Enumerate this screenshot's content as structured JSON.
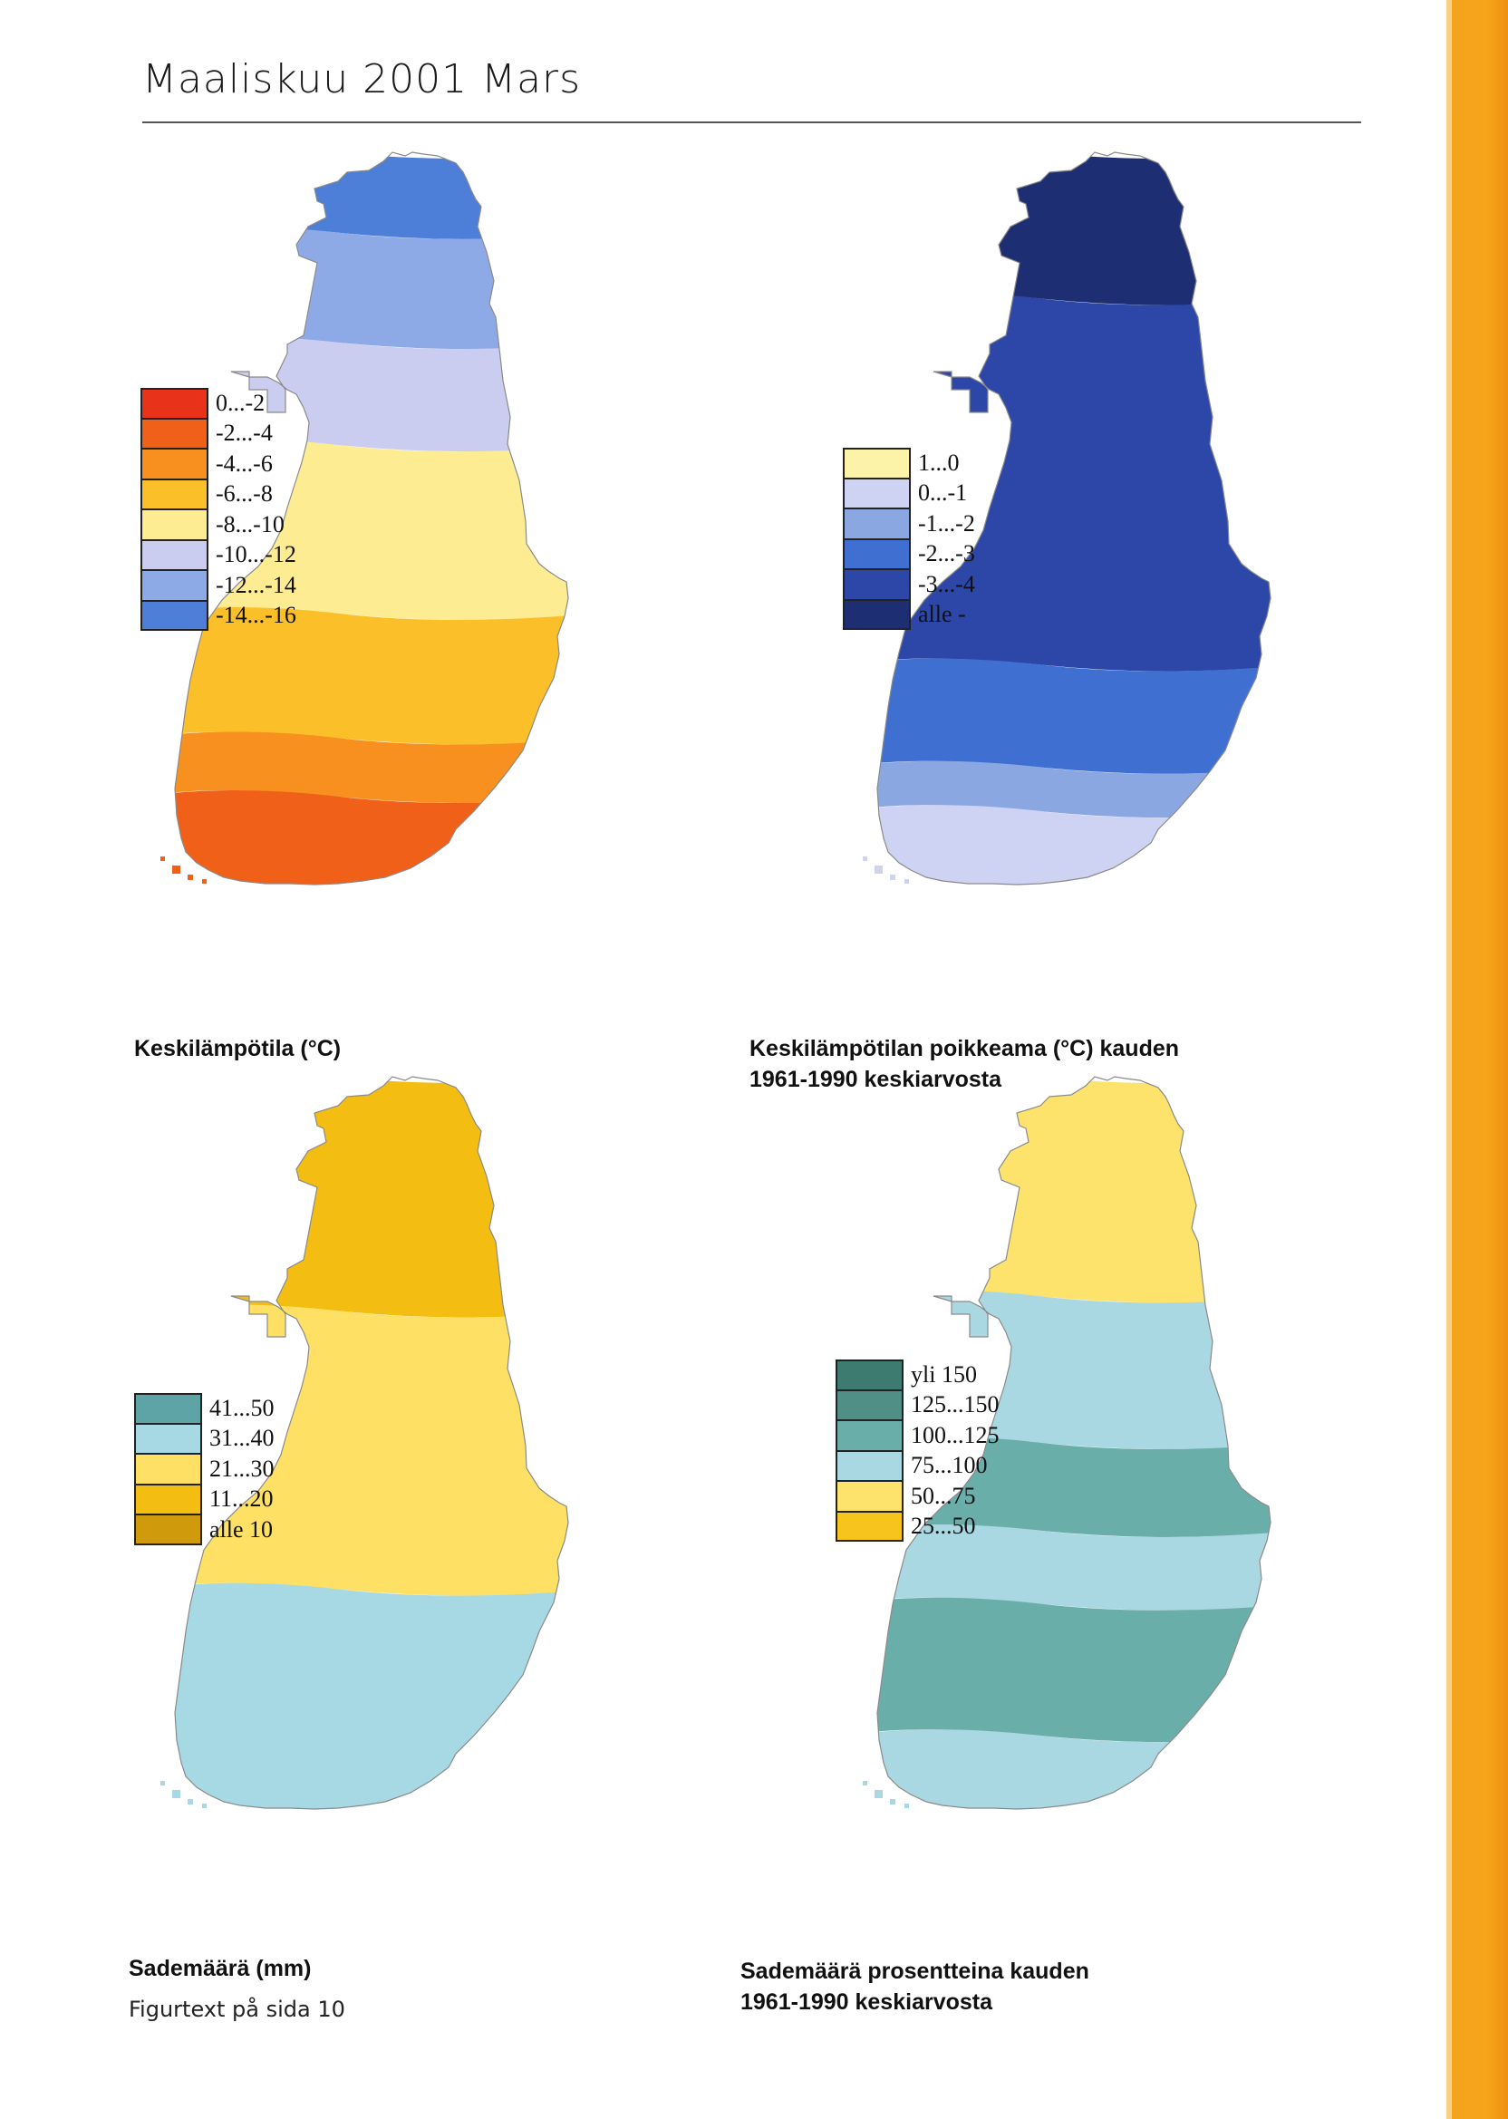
{
  "header": {
    "title": "Maaliskuu 2001 Mars"
  },
  "footer": {
    "note": "Figurtext på sida 10"
  },
  "colors": {
    "sideband": "#f7a51a",
    "outline": "#8a8a8a"
  },
  "maps": [
    {
      "id": "temperature",
      "caption": "Keskilämpötila (°C)",
      "legend": [
        {
          "label": "0...-2",
          "color": "#e8331a"
        },
        {
          "label": "-2...-4",
          "color": "#f06018"
        },
        {
          "label": "-4...-6",
          "color": "#f7901e"
        },
        {
          "label": "-6...-8",
          "color": "#fbbf2a"
        },
        {
          "label": "-8...-10",
          "color": "#fdec92"
        },
        {
          "label": "-10...-12",
          "color": "#cbcdf0"
        },
        {
          "label": "-12...-14",
          "color": "#8eaae6"
        },
        {
          "label": "-14...-16",
          "color": "#4d7fd8"
        }
      ],
      "bands": [
        {
          "level": 0.0,
          "color": "#4d7fd8"
        },
        {
          "level": 0.11,
          "color": "#8eaae6"
        },
        {
          "level": 0.26,
          "color": "#cbcdf0"
        },
        {
          "level": 0.4,
          "color": "#fdec92"
        },
        {
          "level": 0.63,
          "color": "#fbbf2a"
        },
        {
          "level": 0.8,
          "color": "#f7901e"
        },
        {
          "level": 0.88,
          "color": "#f06018"
        }
      ]
    },
    {
      "id": "temperature-anomaly",
      "caption": "Keskilämpötilan poikkeama (°C) kauden\n1961-1990 keskiarvosta",
      "legend": [
        {
          "label": "1...0",
          "color": "#fdf3a8"
        },
        {
          "label": "0...-1",
          "color": "#cfd3f3"
        },
        {
          "label": "-1...-2",
          "color": "#8aa7e2"
        },
        {
          "label": "-2...-3",
          "color": "#3f6fd0"
        },
        {
          "label": "-3...-4",
          "color": "#2c47a8"
        },
        {
          "label": "alle -",
          "color": "#1e2e72"
        }
      ],
      "bands": [
        {
          "level": 0.0,
          "color": "#1e2e72"
        },
        {
          "level": 0.2,
          "color": "#2c47a8"
        },
        {
          "level": 0.7,
          "color": "#3f6fd0"
        },
        {
          "level": 0.84,
          "color": "#8aa7e2"
        },
        {
          "level": 0.9,
          "color": "#cfd3f3"
        }
      ]
    },
    {
      "id": "precipitation",
      "caption": "Sademäärä (mm)",
      "legend": [
        {
          "label": "41...50",
          "color": "#5ea3a6"
        },
        {
          "label": "31...40",
          "color": "#a6d9e4"
        },
        {
          "label": "21...30",
          "color": "#fde064"
        },
        {
          "label": "11...20",
          "color": "#f3bd12"
        },
        {
          "label": "alle 10",
          "color": "#cf9a0c"
        }
      ],
      "bands": [
        {
          "level": 0.0,
          "color": "#f3bd12"
        },
        {
          "level": 0.32,
          "color": "#fde064"
        },
        {
          "level": 0.7,
          "color": "#a6d9e4"
        }
      ]
    },
    {
      "id": "precipitation-percent",
      "caption": "Sademäärä prosentteina kauden\n1961-1990 keskiarvosta",
      "legend": [
        {
          "label": "yli 150",
          "color": "#3d7a70"
        },
        {
          "label": "125...150",
          "color": "#4f8f86"
        },
        {
          "label": "100...125",
          "color": "#6aaeaa"
        },
        {
          "label": "75...100",
          "color": "#a9d8e2"
        },
        {
          "label": "50...75",
          "color": "#fde36b"
        },
        {
          "label": "25...50",
          "color": "#f6c41c"
        }
      ],
      "bands": [
        {
          "level": 0.0,
          "color": "#fde36b"
        },
        {
          "level": 0.3,
          "color": "#a9d8e2"
        },
        {
          "level": 0.5,
          "color": "#6aaeaa"
        },
        {
          "level": 0.62,
          "color": "#a9d8e2"
        },
        {
          "level": 0.72,
          "color": "#6aaeaa"
        },
        {
          "level": 0.9,
          "color": "#a9d8e2"
        }
      ]
    }
  ]
}
